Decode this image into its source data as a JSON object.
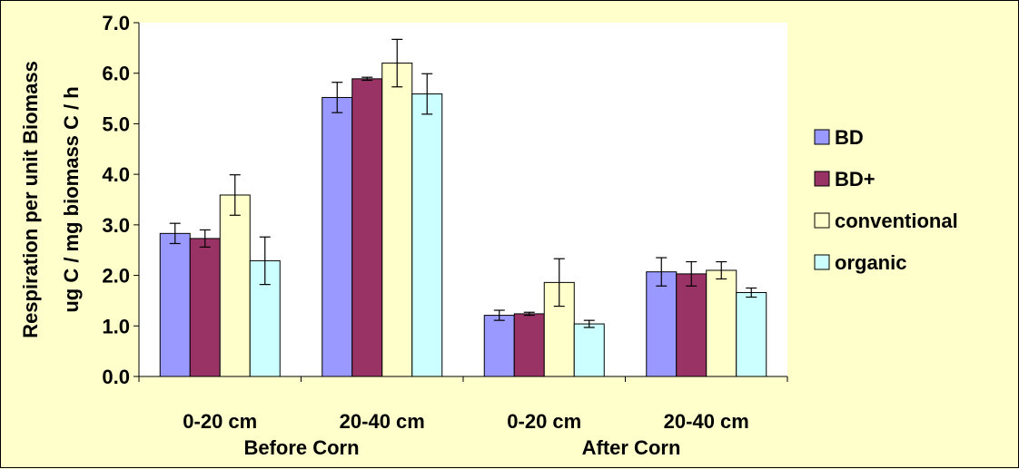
{
  "chart_data": {
    "type": "bar",
    "ylabel_line1": "Respiration per unit Biomass",
    "ylabel_line2": "ug C / mg biomass C / h",
    "ylim": [
      0,
      7
    ],
    "yticks": [
      "0.0",
      "1.0",
      "2.0",
      "3.0",
      "4.0",
      "5.0",
      "6.0",
      "7.0"
    ],
    "categories": [
      "0-20 cm",
      "20-40 cm",
      "0-20 cm",
      "20-40 cm"
    ],
    "groups": [
      "Before Corn",
      "After Corn"
    ],
    "grid": false,
    "legend_position": "right",
    "series": [
      {
        "name": "BD",
        "color": "#9999ff",
        "values": [
          2.83,
          5.52,
          1.21,
          2.07
        ],
        "errors": [
          0.2,
          0.3,
          0.1,
          0.28
        ]
      },
      {
        "name": "BD+",
        "color": "#993366",
        "values": [
          2.73,
          5.89,
          1.24,
          2.03
        ],
        "errors": [
          0.17,
          0.03,
          0.03,
          0.24
        ]
      },
      {
        "name": "conventional",
        "color": "#ffffcc",
        "values": [
          3.59,
          6.2,
          1.86,
          2.1
        ],
        "errors": [
          0.4,
          0.47,
          0.47,
          0.17
        ]
      },
      {
        "name": "organic",
        "color": "#ccffff",
        "values": [
          2.29,
          5.59,
          1.04,
          1.66
        ],
        "errors": [
          0.47,
          0.4,
          0.07,
          0.09
        ]
      }
    ]
  }
}
